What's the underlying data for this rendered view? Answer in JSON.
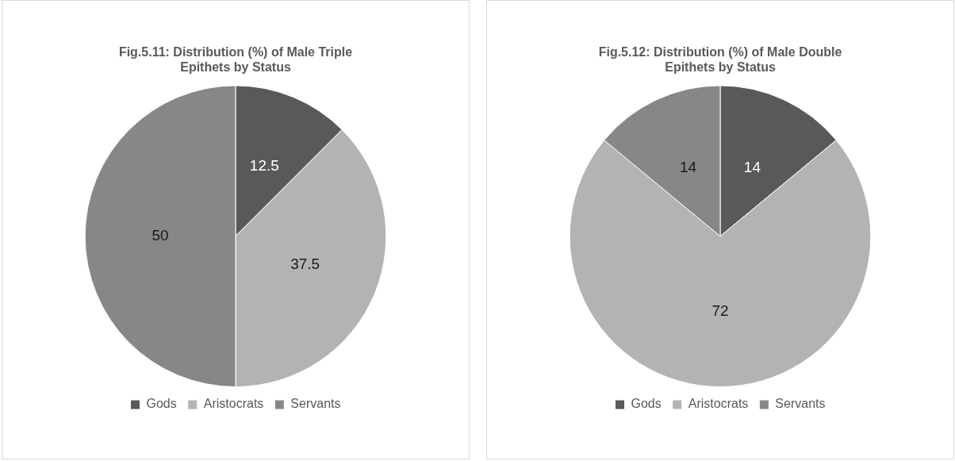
{
  "chart_data": [
    {
      "type": "pie",
      "title": "Fig.5.11: Distribution (%) of Male Triple Epithets by Status",
      "categories": [
        "Gods",
        "Aristocrats",
        "Servants"
      ],
      "values": [
        12.5,
        37.5,
        50
      ],
      "colors": [
        "#595959",
        "#b3b3b3",
        "#878787"
      ],
      "data_labels": true,
      "legend": "bottom"
    },
    {
      "type": "pie",
      "title": "Fig.5.12: Distribution (%) of Male Double Epithets by Status",
      "categories": [
        "Gods",
        "Aristocrats",
        "Servants"
      ],
      "values": [
        14,
        72,
        14
      ],
      "colors": [
        "#595959",
        "#b3b3b3",
        "#878787"
      ],
      "data_labels": true,
      "legend": "bottom"
    }
  ]
}
